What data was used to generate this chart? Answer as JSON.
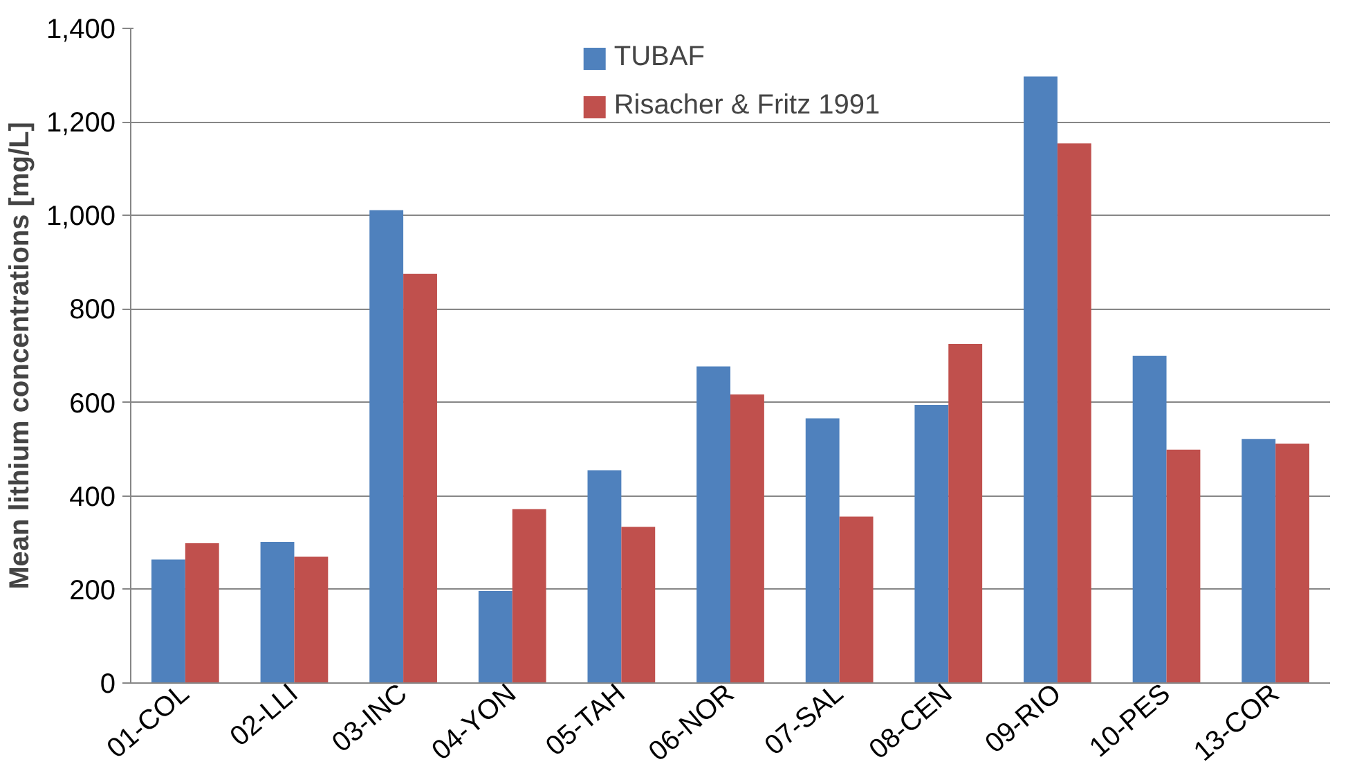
{
  "chart_data": {
    "type": "bar",
    "ylabel": "Mean lithium concentrations [mg/L]",
    "categories": [
      "01-COL",
      "02-LLI",
      "03-INC",
      "04-YON",
      "05-TAH",
      "06-NOR",
      "07-SAL",
      "08-CEN",
      "09-RIO",
      "10-PES",
      "13-COR"
    ],
    "series": [
      {
        "name": "TUBAF",
        "color": "#4f81bd",
        "values": [
          264,
          302,
          1011,
          197,
          455,
          677,
          566,
          595,
          1297,
          700,
          522
        ]
      },
      {
        "name": "Risacher & Fritz 1991",
        "color": "#c0504d",
        "values": [
          299,
          270,
          875,
          372,
          334,
          617,
          356,
          725,
          1154,
          499,
          512
        ]
      }
    ],
    "ylim": [
      0,
      1400
    ],
    "yticks": [
      {
        "value": 0,
        "label": "0"
      },
      {
        "value": 200,
        "label": "200"
      },
      {
        "value": 400,
        "label": "400"
      },
      {
        "value": 600,
        "label": "600"
      },
      {
        "value": 800,
        "label": "800"
      },
      {
        "value": 1000,
        "label": "1,000"
      },
      {
        "value": 1200,
        "label": "1,200"
      },
      {
        "value": 1400,
        "label": "1,400"
      }
    ],
    "grid": "y",
    "legend": "top"
  }
}
